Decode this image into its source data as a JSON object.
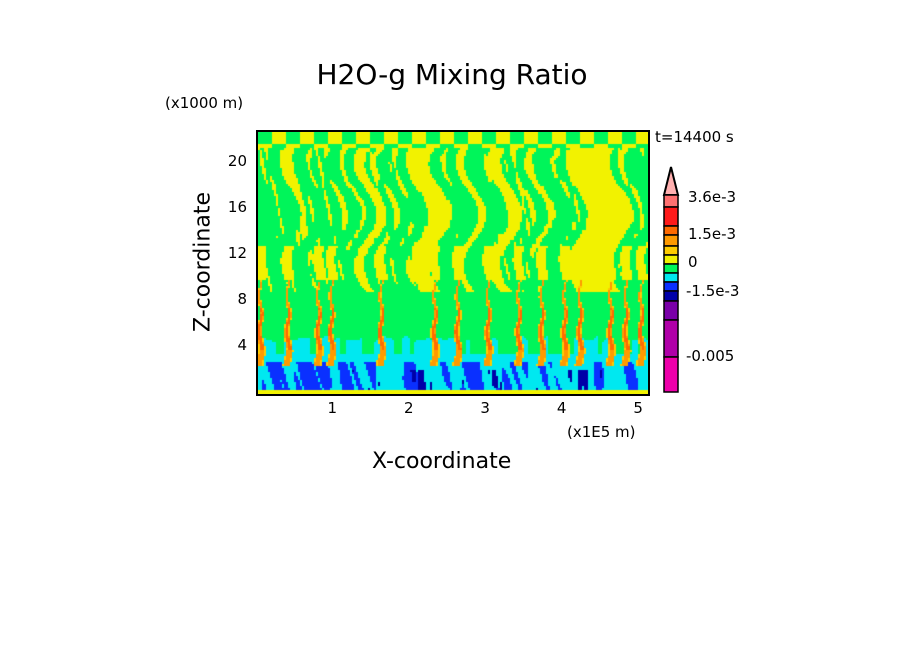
{
  "chart_data": {
    "type": "heatmap",
    "title": "H2O-g Mixing Ratio",
    "xlabel": "X-coordinate",
    "ylabel": "Z-coordinate",
    "x_unit": "(x1E5 m)",
    "y_unit": "(x1000 m)",
    "time_label": "t=14400 s",
    "xlim": [
      0,
      5.1
    ],
    "ylim": [
      0,
      22.8
    ],
    "x_ticks": [
      "1",
      "2",
      "3",
      "4",
      "5"
    ],
    "x_tick_values": [
      1,
      2,
      3,
      4,
      5
    ],
    "y_ticks": [
      "4",
      "8",
      "12",
      "16",
      "20"
    ],
    "y_tick_values": [
      4,
      8,
      12,
      16,
      20
    ],
    "colorbar": {
      "labels": [
        "3.6e-3",
        "1.5e-3",
        "0",
        "-1.5e-3",
        "-0.005"
      ],
      "colors": [
        "#ffb0b0",
        "#ff7070",
        "#ff1a1a",
        "#ff6a00",
        "#ff9a00",
        "#ffcc00",
        "#f2f200",
        "#00f55a",
        "#00e8f0",
        "#0a30ff",
        "#0000a8",
        "#7a00a8",
        "#b000a8",
        "#ee00aa"
      ]
    }
  }
}
